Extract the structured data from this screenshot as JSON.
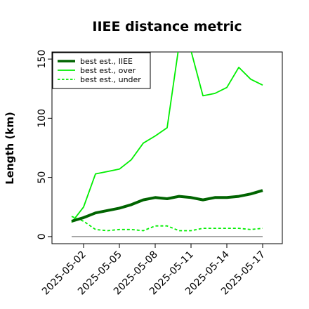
{
  "chart_data": {
    "type": "line",
    "title": "IIEE distance metric",
    "xlabel": "",
    "ylabel": "Length (km)",
    "x": [
      "2025-05-01",
      "2025-05-02",
      "2025-05-03",
      "2025-05-04",
      "2025-05-05",
      "2025-05-06",
      "2025-05-07",
      "2025-05-08",
      "2025-05-09",
      "2025-05-10",
      "2025-05-11",
      "2025-05-12",
      "2025-05-13",
      "2025-05-14",
      "2025-05-15",
      "2025-05-16",
      "2025-05-17"
    ],
    "xticks": [
      "2025-05-02",
      "2025-05-05",
      "2025-05-08",
      "2025-05-11",
      "2025-05-14",
      "2025-05-17"
    ],
    "yticks": [
      0,
      50,
      100,
      150
    ],
    "ylim": [
      -6,
      156
    ],
    "grid": false,
    "legend_position": "top-left",
    "series": [
      {
        "name": "best est., IIEE",
        "color": "#006400",
        "style": "solid-thick",
        "values": [
          13,
          16,
          20,
          22,
          24,
          27,
          31,
          33,
          32,
          34,
          33,
          31,
          33,
          33,
          34,
          36,
          39
        ]
      },
      {
        "name": "best est., over",
        "color": "#00ee00",
        "style": "solid",
        "values": [
          12,
          25,
          53,
          55,
          57,
          65,
          79,
          85,
          92,
          162,
          157,
          119,
          121,
          126,
          143,
          133,
          128
        ]
      },
      {
        "name": "best est., under",
        "color": "#00ee00",
        "style": "dashed",
        "values": [
          17,
          13,
          6,
          5,
          6,
          6,
          5,
          9,
          9,
          5,
          5,
          7,
          7,
          7,
          7,
          6,
          7
        ]
      },
      {
        "color": "#7f7f7f",
        "style": "thin",
        "values": [
          0,
          0,
          0,
          0,
          0,
          0,
          0,
          0,
          0,
          0,
          0,
          0,
          0,
          0,
          0,
          0,
          0
        ]
      }
    ]
  }
}
